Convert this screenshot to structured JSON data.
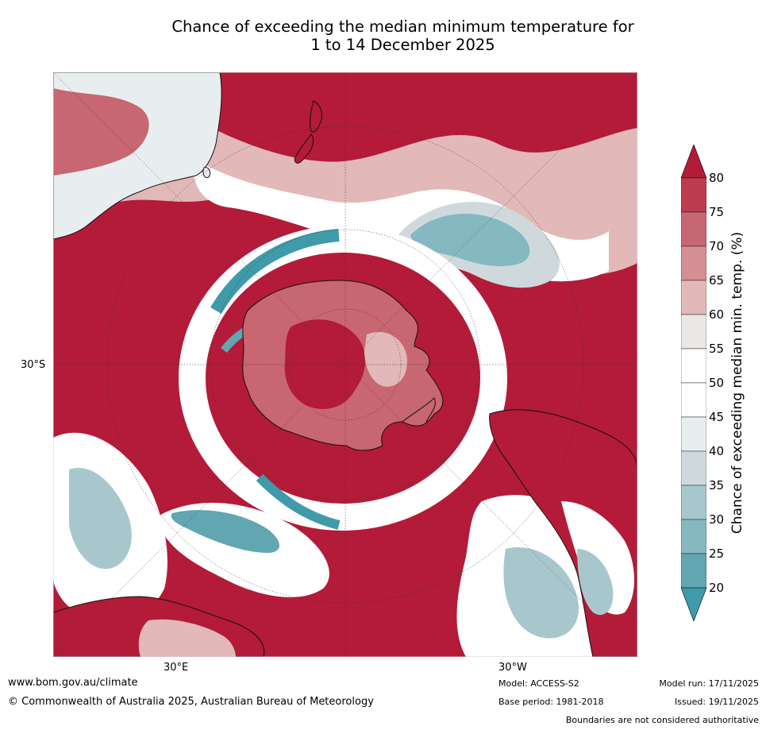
{
  "title_line1": "Chance of exceeding the median minimum temperature for",
  "title_line2": "1 to 14 December 2025",
  "map": {
    "projection": "south-polar-stereographic",
    "lat_label": "30°S",
    "lon_labels": [
      "30°E",
      "30°W"
    ],
    "landmasses": [
      "Antarctica",
      "Australia",
      "New Zealand",
      "South America",
      "Africa"
    ]
  },
  "colorbar": {
    "label": "Chance of exceeding median min. temp. (%)",
    "ticks": [
      "80",
      "75",
      "70",
      "65",
      "60",
      "55",
      "50",
      "45",
      "40",
      "35",
      "30",
      "25",
      "20"
    ],
    "colors": [
      "#b31b38",
      "#bd3c50",
      "#c86671",
      "#d58e93",
      "#e2b8b9",
      "#ebe7e7",
      "#ffffff",
      "#ffffff",
      "#e8eef0",
      "#cfd9dc",
      "#a8c7cc",
      "#86b8c2",
      "#62a6b2",
      "#3f9aa9"
    ]
  },
  "footer": {
    "url": "www.bom.gov.au/climate",
    "copyright": "© Commonwealth of Australia 2025, Australian Bureau of Meteorology",
    "model": "Model: ACCESS-S2",
    "base_period": "Base period: 1981-2018",
    "model_run": "Model run: 17/11/2025",
    "issued": "Issued: 19/11/2025",
    "boundaries": "Boundaries are not considered authoritative"
  }
}
